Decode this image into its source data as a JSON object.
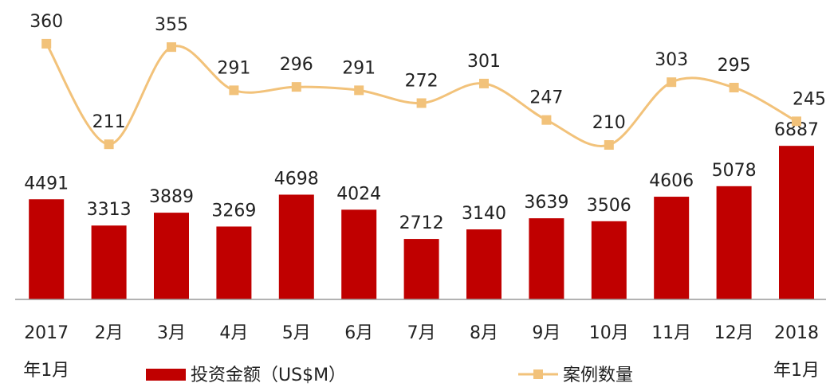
{
  "chart_data": {
    "type": "bar_line",
    "categories": [
      "2017 年1月",
      "2月",
      "3月",
      "4月",
      "5月",
      "6月",
      "7月",
      "8月",
      "9月",
      "10月",
      "11月",
      "12月",
      "2018 年1月"
    ],
    "ylim": [
      0,
      12000
    ],
    "y2lim": [
      0,
      400
    ],
    "series": [
      {
        "name": "投资金额（US$M）",
        "type": "bar",
        "color": "#c00000",
        "values": [
          4491,
          3313,
          3889,
          3269,
          4698,
          4024,
          2712,
          3140,
          3639,
          3506,
          4606,
          5078,
          6887
        ]
      },
      {
        "name": "案例数量",
        "type": "line",
        "axis": "y2",
        "color": "#f2c27a",
        "values": [
          360,
          211,
          355,
          291,
          296,
          291,
          272,
          301,
          247,
          210,
          303,
          295,
          245
        ]
      }
    ]
  }
}
